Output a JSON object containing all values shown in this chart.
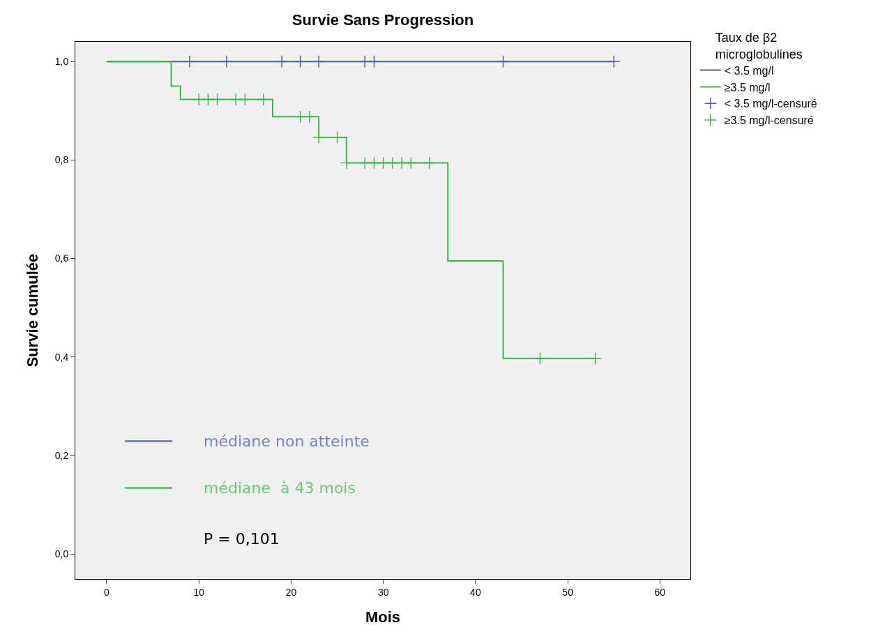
{
  "chart_data": {
    "type": "step",
    "title": "Survie Sans Progression",
    "xlabel": "Mois",
    "ylabel": "Survie cumulée",
    "legend_title": "Taux de β2 microglobulines",
    "legend": "top right",
    "grid": false,
    "xlim": [
      -3.4,
      63.3
    ],
    "xticks": [
      0,
      10,
      20,
      30,
      40,
      50,
      60
    ],
    "ylim": [
      -0.051,
      1.04
    ],
    "yticks": [
      {
        "value": 0,
        "label": "0,0"
      },
      {
        "value": 0.2,
        "label": "0,2"
      },
      {
        "value": 0.4,
        "label": "0,4"
      },
      {
        "value": 0.6,
        "label": "0,6"
      },
      {
        "value": 0.8,
        "label": "0,8"
      },
      {
        "value": 1,
        "label": "1,0"
      }
    ],
    "series": [
      {
        "name": "< 3.5 mg/l",
        "color": "#4a5cb8",
        "marker": "none",
        "x": [
          0,
          55
        ],
        "values": [
          1,
          1
        ]
      },
      {
        "name": "≥3.5 mg/l",
        "color": "#3cb84a",
        "marker": "none",
        "x": [
          0,
          7,
          8,
          18,
          23,
          26,
          37,
          43,
          53
        ],
        "values": [
          1,
          0.95,
          0.923,
          0.888,
          0.846,
          0.794,
          0.595,
          0.397,
          0.397
        ]
      },
      {
        "name": "< 3.5 mg/l-censuré",
        "type": "scatter",
        "color": "#4a5cb8",
        "marker": "cross",
        "x": [
          9,
          13,
          19,
          21,
          23,
          28,
          29,
          43,
          55
        ],
        "values": [
          1,
          1,
          1,
          1,
          1,
          1,
          1,
          1,
          1
        ]
      },
      {
        "name": "≥3.5 mg/l-censuré",
        "type": "scatter",
        "color": "#3cb84a",
        "marker": "cross",
        "x": [
          10,
          11,
          12,
          14,
          15,
          17,
          21,
          22,
          23,
          25,
          26,
          28,
          29,
          30,
          31,
          32,
          33,
          35,
          47,
          53
        ],
        "values": [
          0.923,
          0.923,
          0.923,
          0.923,
          0.923,
          0.923,
          0.888,
          0.888,
          0.846,
          0.846,
          0.794,
          0.794,
          0.794,
          0.794,
          0.794,
          0.794,
          0.794,
          0.794,
          0.397,
          0.397
        ]
      }
    ],
    "annotations": [
      "médiane non atteinte",
      "médiane  à 43 mois",
      "P = 0,101"
    ]
  }
}
